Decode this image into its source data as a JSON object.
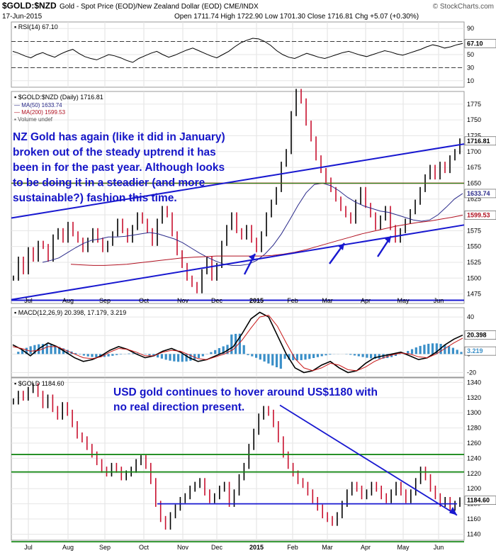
{
  "header": {
    "symbol": "$GOLD:$NZD",
    "description": "Gold - Spot Price (EOD)/New Zealand Dollar (EOD)",
    "exchange": "CME/INDX",
    "date": "17-Jun-2015",
    "ohlc": "Open 1711.74  High 1722.90  Low 1701.30  Close 1716.81  Chg +5.07 (+0.30%)",
    "watermark": "© StockCharts.com"
  },
  "months": [
    "Jul",
    "Aug",
    "Sep",
    "Oct",
    "Nov",
    "Dec",
    "2015",
    "Feb",
    "Mar",
    "Apr",
    "May",
    "Jun"
  ],
  "annotations": {
    "nzd_note": [
      "NZ Gold has again (like it did in January)",
      "broken out of the steady uptrend it has",
      "been in for the past year. Although looks",
      "to be doing it in a steadier (and more",
      "sustainable?) fashion this time."
    ],
    "usd_note": [
      "USD gold continues to hover around US$1180 with",
      "no real direction present."
    ]
  },
  "colors": {
    "annotation_text": "#1515c8",
    "trend_line": "#1818d0",
    "support_line": "#1a8a1a",
    "breakout_line": "#e01818",
    "price_up": "#000000",
    "price_down": "#c8102e",
    "ma50": "#2a2a8a",
    "ma200": "#b01020",
    "macd_hist": "#3a8fc8"
  },
  "chart_data": [
    {
      "type": "line",
      "title": "RSI(14) 67.10",
      "series": [
        {
          "name": "RSI(14)",
          "last": 67.1,
          "values": [
            55,
            52,
            48,
            45,
            50,
            53,
            49,
            46,
            51,
            55,
            58,
            52,
            47,
            44,
            42,
            46,
            50,
            48,
            45,
            41,
            38,
            44,
            48,
            52,
            55,
            50,
            46,
            49,
            53,
            57,
            60,
            56,
            52,
            48,
            45,
            50,
            55,
            62,
            68,
            72,
            75,
            74,
            70,
            64,
            56,
            50,
            46,
            44,
            48,
            52,
            49,
            46,
            44,
            47,
            50,
            53,
            55,
            52,
            49,
            47,
            50,
            53,
            56,
            54,
            51,
            49,
            52,
            55,
            58,
            62,
            65,
            63,
            60,
            62,
            65,
            67.1
          ]
        }
      ],
      "yticks": [
        10,
        30,
        50,
        70,
        90
      ],
      "ylim": [
        0,
        100
      ]
    },
    {
      "type": "line",
      "title": "$GOLD:$NZD (Daily) 1716.81",
      "legend": [
        "MA(50) 1633.74",
        "MA(200) 1599.53",
        "Volume undef"
      ],
      "series": [
        {
          "name": "$GOLD:$NZD",
          "last": 1716.81,
          "values": [
            1500,
            1530,
            1510,
            1545,
            1530,
            1555,
            1550,
            1530,
            1565,
            1575,
            1560,
            1585,
            1570,
            1560,
            1545,
            1560,
            1575,
            1560,
            1545,
            1555,
            1570,
            1590,
            1575,
            1560,
            1580,
            1600,
            1590,
            1575,
            1555,
            1590,
            1610,
            1600,
            1570,
            1540,
            1520,
            1500,
            1490,
            1480,
            1510,
            1530,
            1500,
            1520,
            1555,
            1580,
            1600,
            1575,
            1565,
            1580,
            1560,
            1545,
            1570,
            1600,
            1620,
            1640,
            1680,
            1700,
            1760,
            1795,
            1780,
            1745,
            1720,
            1690,
            1670,
            1655,
            1640,
            1625,
            1610,
            1600,
            1590,
            1620,
            1640,
            1615,
            1600,
            1580,
            1595,
            1610,
            1580,
            1560,
            1575,
            1590,
            1605,
            1620,
            1640,
            1660,
            1675,
            1660,
            1680,
            1670,
            1690,
            1700,
            1716.81
          ]
        },
        {
          "name": "MA(50)",
          "last": 1633.74,
          "values": [
            1525,
            1528,
            1532,
            1540,
            1548,
            1555,
            1560,
            1562,
            1565,
            1565,
            1566,
            1568,
            1570,
            1572,
            1570,
            1566,
            1562,
            1556,
            1548,
            1540,
            1533,
            1527,
            1522,
            1520,
            1520,
            1522,
            1528,
            1538,
            1552,
            1570,
            1592,
            1615,
            1635,
            1648,
            1650,
            1646,
            1638,
            1628,
            1620,
            1614,
            1610,
            1606,
            1604,
            1600,
            1596,
            1592,
            1590,
            1592,
            1600,
            1612,
            1625,
            1633.74
          ]
        },
        {
          "name": "MA(200)",
          "last": 1599.53,
          "values": [
            1522,
            1521,
            1520,
            1520,
            1521,
            1522,
            1524,
            1526,
            1528,
            1530,
            1532,
            1533,
            1534,
            1535,
            1535,
            1535,
            1535,
            1535,
            1536,
            1538,
            1541,
            1545,
            1550,
            1555,
            1560,
            1565,
            1570,
            1574,
            1578,
            1582,
            1585,
            1588,
            1590,
            1593,
            1596,
            1599.53
          ]
        }
      ],
      "horizontal_lines": [
        1650,
        1465
      ],
      "yticks": [
        1475,
        1500,
        1525,
        1550,
        1575,
        1600,
        1625,
        1650,
        1675,
        1700,
        1725,
        1750,
        1775
      ],
      "ylim": [
        1460,
        1795
      ]
    },
    {
      "type": "line",
      "title": "MACD(12,26,9) 20.398, 17.179, 3.219",
      "series": [
        {
          "name": "MACD",
          "last": 20.398
        },
        {
          "name": "Signal",
          "last": 17.179
        },
        {
          "name": "Histogram",
          "last": 3.219
        }
      ],
      "yticks": [
        -20,
        0,
        20,
        40
      ],
      "ylim": [
        -25,
        50
      ]
    },
    {
      "type": "line",
      "title": "$GOLD 1184.60",
      "series": [
        {
          "name": "$GOLD",
          "last": 1184.6,
          "values": [
            1315,
            1325,
            1320,
            1330,
            1335,
            1325,
            1310,
            1320,
            1305,
            1295,
            1310,
            1300,
            1285,
            1270,
            1265,
            1255,
            1245,
            1235,
            1225,
            1220,
            1230,
            1225,
            1215,
            1220,
            1225,
            1235,
            1240,
            1230,
            1210,
            1180,
            1160,
            1150,
            1165,
            1175,
            1185,
            1190,
            1200,
            1205,
            1210,
            1195,
            1185,
            1190,
            1200,
            1205,
            1180,
            1195,
            1215,
            1230,
            1255,
            1275,
            1295,
            1305,
            1300,
            1285,
            1265,
            1245,
            1230,
            1220,
            1210,
            1205,
            1195,
            1185,
            1175,
            1165,
            1160,
            1155,
            1165,
            1180,
            1195,
            1205,
            1200,
            1190,
            1195,
            1205,
            1200,
            1190,
            1185,
            1195,
            1205,
            1195,
            1185,
            1195,
            1210,
            1225,
            1215,
            1200,
            1190,
            1180,
            1185,
            1175,
            1180,
            1184.6
          ]
        }
      ],
      "horizontal_lines": [
        1245,
        1222,
        1130
      ],
      "yticks": [
        1140,
        1160,
        1180,
        1200,
        1220,
        1240,
        1260,
        1280,
        1300,
        1320,
        1340
      ],
      "ylim": [
        1132,
        1346
      ]
    }
  ]
}
